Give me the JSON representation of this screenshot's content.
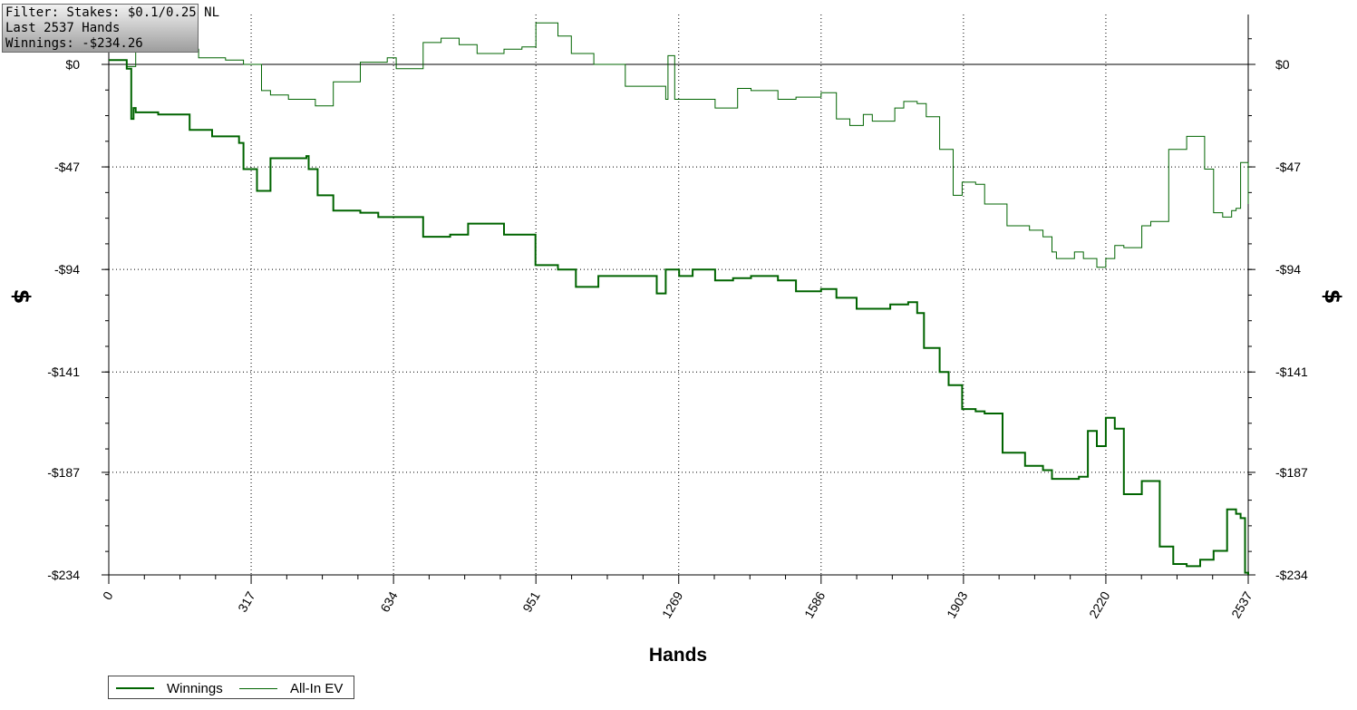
{
  "info": {
    "filter": "Filter: Stakes: $0.1/0.25 NL",
    "hands": "Last 2537 Hands",
    "winnings": "Winnings: -$234.26"
  },
  "chart_data": {
    "type": "line",
    "xlabel": "Hands",
    "ylabel": "$",
    "xlim": [
      0,
      2537
    ],
    "ylim": [
      -234,
      22
    ],
    "x_ticks": [
      "0",
      "317",
      "634",
      "951",
      "1269",
      "1586",
      "1903",
      "2220",
      "2537"
    ],
    "x_tick_values": [
      0,
      317,
      634,
      951,
      1269,
      1586,
      1903,
      2220,
      2537
    ],
    "y_ticks": [
      "$0",
      "-$47",
      "-$94",
      "-$141",
      "-$187",
      "-$234"
    ],
    "y_tick_values": [
      0,
      -47,
      -94,
      -141,
      -187,
      -234
    ],
    "grid": true,
    "legend_position": "bottom-left",
    "series": [
      {
        "name": "Winnings",
        "color": "#006400",
        "x": [
          0,
          40,
          50,
          55,
          60,
          110,
          180,
          230,
          290,
          300,
          330,
          360,
          440,
          445,
          465,
          500,
          560,
          600,
          700,
          760,
          800,
          880,
          950,
          1000,
          1040,
          1090,
          1220,
          1240,
          1270,
          1300,
          1350,
          1390,
          1430,
          1490,
          1530,
          1586,
          1620,
          1650,
          1665,
          1700,
          1740,
          1780,
          1800,
          1815,
          1850,
          1870,
          1900,
          1930,
          1950,
          1990,
          2040,
          2080,
          2100,
          2160,
          2180,
          2200,
          2220,
          2240,
          2260,
          2300,
          2340,
          2370,
          2400,
          2430,
          2460,
          2490,
          2510,
          2520,
          2530,
          2537
        ],
        "y": [
          2,
          -2,
          -25,
          -20,
          -22,
          -23,
          -30,
          -33,
          -36,
          -48,
          -58,
          -43,
          -42,
          -48,
          -60,
          -67,
          -68,
          -70,
          -79,
          -78,
          -73,
          -78,
          -92,
          -94,
          -102,
          -97,
          -105,
          -94,
          -97,
          -94,
          -99,
          -98,
          -97,
          -99,
          -104,
          -103,
          -107,
          -107,
          -112,
          -112,
          -110,
          -109,
          -114,
          -130,
          -141,
          -147,
          -158,
          -159,
          -160,
          -178,
          -184,
          -186,
          -190,
          -189,
          -168,
          -175,
          -162,
          -167,
          -197,
          -191,
          -221,
          -229,
          -230,
          -227,
          -223,
          -204,
          -206,
          -208,
          -233,
          -234
        ]
      },
      {
        "name": "All-In EV",
        "color": "#006400",
        "x": [
          0,
          40,
          60,
          110,
          200,
          260,
          300,
          340,
          360,
          400,
          460,
          500,
          560,
          620,
          640,
          700,
          740,
          780,
          820,
          880,
          920,
          951,
          1000,
          1030,
          1080,
          1150,
          1240,
          1245,
          1260,
          1300,
          1350,
          1400,
          1430,
          1490,
          1530,
          1586,
          1620,
          1650,
          1680,
          1700,
          1750,
          1770,
          1800,
          1820,
          1850,
          1880,
          1900,
          1930,
          1950,
          2000,
          2050,
          2080,
          2100,
          2110,
          2150,
          2170,
          2200,
          2220,
          2240,
          2260,
          2300,
          2320,
          2360,
          2380,
          2400,
          2440,
          2460,
          2480,
          2500,
          2510,
          2520,
          2537
        ],
        "y": [
          2,
          -1,
          10,
          7,
          3,
          2,
          0,
          -12,
          -14,
          -16,
          -19,
          -8,
          1,
          3,
          -2,
          10,
          12,
          9,
          5,
          7,
          8,
          19,
          13,
          5,
          0,
          -10,
          -16,
          4,
          -16,
          -16,
          -20,
          -11,
          -12,
          -16,
          -15,
          -13,
          -25,
          -28,
          -23,
          -26,
          -20,
          -17,
          -18,
          -24,
          -39,
          -60,
          -54,
          -55,
          -64,
          -74,
          -76,
          -79,
          -86,
          -89,
          -86,
          -89,
          -93,
          -89,
          -83,
          -84,
          -74,
          -72,
          -39,
          -39,
          -33,
          -48,
          -68,
          -70,
          -67,
          -66,
          -45,
          -64
        ]
      }
    ]
  },
  "legend": {
    "winnings": "Winnings",
    "allin": "All-In EV"
  }
}
